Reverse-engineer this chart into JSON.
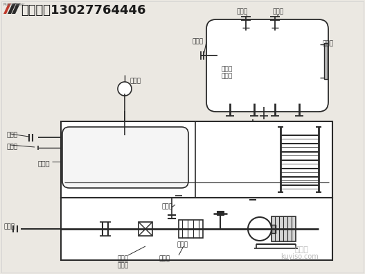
{
  "bg_color": "#ebe8e2",
  "line_color": "#2a2a2a",
  "title_text": "枫岚锅炉13027764446",
  "labels": {
    "paiqikou": "排气口",
    "zhuyoukou": "注油口",
    "yejizhi": "液位计",
    "yiliukou": "溢流口",
    "pengzhangcang": "膨胀槽\n连接口",
    "chuyoukou": "出油口",
    "cewendian": "测量点",
    "yalibiao": "压力表",
    "baowencao": "保温槽",
    "paiwukou": "排污口",
    "jinyoukou": "进油口",
    "pengzhangcang2": "膨胀槽\n连接口",
    "guolvqi": "过滤器",
    "kuyiso": "kuyiso.com",
    "haoyisou": "酷易搜"
  },
  "fig_w": 5.27,
  "fig_h": 3.95,
  "dpi": 100
}
